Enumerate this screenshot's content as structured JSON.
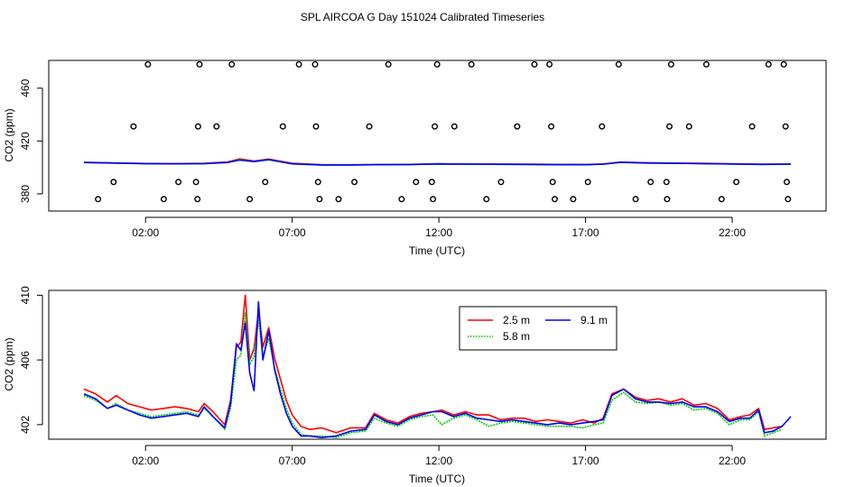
{
  "title": "SPL AIRCOA G  Day 151024  Calibrated Timeseries",
  "chart_data": [
    {
      "type": "scatter",
      "name": "all-samples",
      "xlabel": "Time (UTC)",
      "ylabel": "CO2 (ppm)",
      "xlim": [
        -1.3,
        25.2
      ],
      "ylim": [
        367,
        481
      ],
      "xticks": [
        {
          "v": 2,
          "label": "02:00"
        },
        {
          "v": 7,
          "label": "07:00"
        },
        {
          "v": 12,
          "label": "12:00"
        },
        {
          "v": 17,
          "label": "17:00"
        },
        {
          "v": 22,
          "label": "22:00"
        }
      ],
      "yticks": [
        {
          "v": 380,
          "label": "380"
        },
        {
          "v": 420,
          "label": "420"
        },
        {
          "v": 460,
          "label": "460"
        }
      ],
      "calibration_points": [
        [
          0.38,
          376
        ],
        [
          0.91,
          389
        ],
        [
          1.59,
          431
        ],
        [
          2.08,
          478
        ],
        [
          2.62,
          376
        ],
        [
          3.12,
          389
        ],
        [
          3.72,
          389
        ],
        [
          3.77,
          376
        ],
        [
          3.79,
          431
        ],
        [
          3.84,
          478
        ],
        [
          4.42,
          431
        ],
        [
          4.94,
          478
        ],
        [
          5.55,
          376
        ],
        [
          6.08,
          389
        ],
        [
          6.68,
          431
        ],
        [
          7.23,
          478
        ],
        [
          7.78,
          478
        ],
        [
          7.81,
          431
        ],
        [
          7.88,
          389
        ],
        [
          7.93,
          376
        ],
        [
          8.58,
          376
        ],
        [
          9.12,
          389
        ],
        [
          9.63,
          431
        ],
        [
          10.28,
          478
        ],
        [
          10.73,
          376
        ],
        [
          11.22,
          389
        ],
        [
          11.76,
          389
        ],
        [
          11.8,
          376
        ],
        [
          11.86,
          431
        ],
        [
          11.94,
          478
        ],
        [
          12.53,
          431
        ],
        [
          13.11,
          478
        ],
        [
          13.62,
          376
        ],
        [
          14.12,
          389
        ],
        [
          14.67,
          431
        ],
        [
          15.26,
          478
        ],
        [
          15.77,
          478
        ],
        [
          15.83,
          431
        ],
        [
          15.88,
          389
        ],
        [
          15.95,
          376
        ],
        [
          16.58,
          376
        ],
        [
          17.08,
          389
        ],
        [
          17.56,
          431
        ],
        [
          18.13,
          478
        ],
        [
          18.71,
          376
        ],
        [
          19.22,
          389
        ],
        [
          19.76,
          389
        ],
        [
          19.78,
          376
        ],
        [
          19.86,
          431
        ],
        [
          19.92,
          478
        ],
        [
          20.53,
          431
        ],
        [
          21.12,
          478
        ],
        [
          21.64,
          376
        ],
        [
          22.14,
          389
        ],
        [
          22.68,
          431
        ],
        [
          23.24,
          478
        ],
        [
          23.76,
          478
        ],
        [
          23.82,
          431
        ],
        [
          23.86,
          389
        ],
        [
          23.9,
          376
        ]
      ],
      "series": [
        {
          "name": "2.5 m",
          "color": "#ff0000",
          "x": [
            -0.1,
            1,
            2,
            3,
            4,
            4.8,
            5.2,
            5.7,
            6.2,
            7,
            8,
            9,
            10,
            11,
            12,
            13,
            14,
            15,
            16,
            17,
            17.6,
            18.2,
            19,
            20,
            21,
            22,
            23,
            24
          ],
          "values": [
            403.9,
            403.4,
            403.0,
            402.9,
            403.1,
            404.2,
            406.5,
            404.8,
            406.3,
            403.2,
            402.1,
            402.0,
            402.2,
            402.3,
            402.8,
            402.6,
            402.5,
            402.4,
            402.3,
            402.2,
            402.6,
            404.1,
            403.6,
            403.3,
            403.1,
            402.7,
            402.5,
            402.6
          ]
        },
        {
          "name": "5.8 m",
          "color": "#00cc00",
          "x": [
            -0.1,
            1,
            2,
            3,
            4,
            4.8,
            5.2,
            5.7,
            6.2,
            7,
            8,
            9,
            10,
            11,
            12,
            13,
            14,
            15,
            16,
            17,
            17.6,
            18.2,
            19,
            20,
            21,
            22,
            23,
            24
          ],
          "values": [
            403.7,
            403.2,
            402.8,
            402.7,
            402.9,
            403.8,
            406.0,
            404.5,
            405.8,
            402.8,
            401.9,
            401.9,
            402.1,
            402.2,
            402.6,
            402.4,
            402.3,
            402.2,
            402.1,
            402.0,
            402.4,
            403.8,
            403.3,
            403.1,
            402.9,
            402.5,
            402.3,
            402.4
          ]
        },
        {
          "name": "9.1 m",
          "color": "#0000ff",
          "x": [
            -0.1,
            1,
            2,
            3,
            4,
            4.8,
            5.2,
            5.7,
            6.2,
            7,
            8,
            9,
            10,
            11,
            12,
            13,
            14,
            15,
            16,
            17,
            17.6,
            18.2,
            19,
            20,
            21,
            22,
            23,
            24
          ],
          "values": [
            403.7,
            403.3,
            402.9,
            402.7,
            402.9,
            403.7,
            405.6,
            404.4,
            405.9,
            402.7,
            401.9,
            401.9,
            402.1,
            402.2,
            402.6,
            402.5,
            402.4,
            402.3,
            402.1,
            402.1,
            402.5,
            403.9,
            403.4,
            403.1,
            402.9,
            402.6,
            402.3,
            402.5
          ]
        }
      ]
    },
    {
      "type": "line",
      "name": "tower-levels",
      "xlabel": "Time (UTC)",
      "ylabel": "CO2 (ppm)",
      "xlim": [
        -1.3,
        25.2
      ],
      "ylim": [
        401.1,
        410.3
      ],
      "xticks": [
        {
          "v": 2,
          "label": "02:00"
        },
        {
          "v": 7,
          "label": "07:00"
        },
        {
          "v": 12,
          "label": "12:00"
        },
        {
          "v": 17,
          "label": "17:00"
        },
        {
          "v": 22,
          "label": "22:00"
        }
      ],
      "yticks": [
        {
          "v": 402,
          "label": "402"
        },
        {
          "v": 406,
          "label": "406"
        },
        {
          "v": 410,
          "label": "410"
        }
      ],
      "legend": {
        "position": "top-center",
        "entries": [
          "2.5 m",
          "5.8 m",
          "9.1 m"
        ]
      },
      "series": [
        {
          "name": "2.5 m",
          "color": "#ff0000",
          "linestyle": "solid",
          "x": [
            -0.1,
            0.3,
            0.7,
            1.0,
            1.4,
            1.8,
            2.2,
            2.6,
            3.0,
            3.4,
            3.8,
            4.0,
            4.3,
            4.7,
            4.9,
            5.1,
            5.25,
            5.4,
            5.55,
            5.7,
            5.85,
            6.0,
            6.2,
            6.4,
            6.6,
            6.8,
            7.0,
            7.3,
            7.6,
            8.0,
            8.5,
            9.0,
            9.5,
            9.8,
            10.2,
            10.6,
            11.0,
            11.4,
            11.8,
            12.1,
            12.5,
            12.9,
            13.3,
            13.7,
            14.1,
            14.5,
            14.9,
            15.3,
            15.7,
            16.1,
            16.5,
            16.9,
            17.3,
            17.6,
            17.9,
            18.3,
            18.7,
            19.1,
            19.5,
            19.9,
            20.3,
            20.7,
            21.1,
            21.5,
            21.9,
            22.3,
            22.6,
            22.9,
            23.1,
            23.4,
            23.7
          ],
          "values": [
            404.2,
            403.9,
            403.4,
            403.8,
            403.3,
            403.1,
            402.9,
            403.0,
            403.1,
            403.0,
            402.8,
            403.3,
            402.8,
            402.0,
            403.5,
            406.8,
            407.1,
            410.0,
            406.0,
            406.7,
            409.0,
            406.8,
            408.0,
            406.1,
            404.8,
            403.5,
            402.6,
            401.9,
            401.7,
            401.8,
            401.5,
            401.8,
            401.8,
            402.7,
            402.3,
            402.1,
            402.5,
            402.7,
            402.8,
            402.9,
            402.6,
            402.8,
            402.6,
            402.6,
            402.3,
            402.4,
            402.4,
            402.2,
            402.3,
            402.2,
            402.1,
            402.3,
            402.1,
            402.4,
            403.9,
            404.2,
            403.7,
            403.5,
            403.6,
            403.4,
            403.6,
            403.2,
            403.3,
            403.0,
            402.3,
            402.5,
            402.6,
            403.0,
            401.7,
            401.8,
            401.9
          ]
        },
        {
          "name": "5.8 m",
          "color": "#00cc00",
          "linestyle": "dotted",
          "x": [
            -0.1,
            0.3,
            0.7,
            1.0,
            1.4,
            1.8,
            2.2,
            2.6,
            3.0,
            3.4,
            3.8,
            4.0,
            4.3,
            4.7,
            4.9,
            5.1,
            5.25,
            5.4,
            5.55,
            5.7,
            5.85,
            6.0,
            6.2,
            6.4,
            6.6,
            6.8,
            7.0,
            7.3,
            7.6,
            8.0,
            8.5,
            9.0,
            9.5,
            9.8,
            10.2,
            10.6,
            11.0,
            11.4,
            11.8,
            12.1,
            12.5,
            12.9,
            13.3,
            13.7,
            14.1,
            14.5,
            14.9,
            15.3,
            15.7,
            16.1,
            16.5,
            16.9,
            17.3,
            17.6,
            17.9,
            18.3,
            18.7,
            19.1,
            19.5,
            19.9,
            20.3,
            20.7,
            21.1,
            21.5,
            21.9,
            22.3,
            22.6,
            22.9,
            23.1,
            23.4,
            23.7
          ],
          "values": [
            403.8,
            403.5,
            403.0,
            403.3,
            402.9,
            402.7,
            402.5,
            402.6,
            402.7,
            402.8,
            402.6,
            403.0,
            402.5,
            401.7,
            403.0,
            406.0,
            406.3,
            408.9,
            405.7,
            406.2,
            408.5,
            406.2,
            407.3,
            405.5,
            404.2,
            403.0,
            402.1,
            401.4,
            401.3,
            401.3,
            401.2,
            401.5,
            401.6,
            402.4,
            402.1,
            401.9,
            402.3,
            402.5,
            402.6,
            402.0,
            402.4,
            402.6,
            402.3,
            401.9,
            402.1,
            402.2,
            402.1,
            402.0,
            401.9,
            401.9,
            401.9,
            401.8,
            402.0,
            402.1,
            403.5,
            404.0,
            403.4,
            403.3,
            403.4,
            403.2,
            403.3,
            402.9,
            403.0,
            402.7,
            402.0,
            402.3,
            402.3,
            402.8,
            401.3,
            401.5,
            401.7
          ]
        },
        {
          "name": "9.1 m",
          "color": "#0000ff",
          "linestyle": "solid",
          "x": [
            -0.1,
            0.3,
            0.7,
            1.0,
            1.4,
            1.8,
            2.2,
            2.6,
            3.0,
            3.4,
            3.8,
            4.0,
            4.3,
            4.7,
            4.9,
            5.1,
            5.25,
            5.4,
            5.55,
            5.7,
            5.85,
            6.0,
            6.2,
            6.4,
            6.6,
            6.8,
            7.0,
            7.3,
            7.6,
            8.0,
            8.5,
            9.0,
            9.5,
            9.8,
            10.2,
            10.6,
            11.0,
            11.4,
            11.8,
            12.1,
            12.5,
            12.9,
            13.3,
            13.7,
            14.1,
            14.5,
            14.9,
            15.3,
            15.7,
            16.1,
            16.5,
            16.9,
            17.3,
            17.6,
            17.9,
            18.3,
            18.7,
            19.1,
            19.5,
            19.9,
            20.3,
            20.7,
            21.1,
            21.5,
            21.9,
            22.3,
            22.6,
            22.9,
            23.1,
            23.4,
            23.7,
            24.0
          ],
          "values": [
            403.9,
            403.6,
            403.0,
            403.2,
            402.9,
            402.6,
            402.4,
            402.5,
            402.6,
            402.7,
            402.5,
            403.1,
            402.5,
            401.8,
            403.3,
            407.0,
            406.6,
            408.3,
            405.2,
            404.1,
            409.6,
            406.0,
            407.8,
            405.4,
            403.9,
            402.7,
            401.9,
            401.3,
            401.3,
            401.2,
            401.3,
            401.6,
            401.7,
            402.6,
            402.2,
            402.0,
            402.4,
            402.6,
            402.8,
            402.8,
            402.5,
            402.7,
            402.4,
            402.3,
            402.2,
            402.3,
            402.2,
            402.1,
            402.0,
            402.1,
            402.0,
            402.1,
            402.2,
            402.3,
            403.8,
            404.2,
            403.6,
            403.4,
            403.4,
            403.3,
            403.4,
            403.1,
            403.1,
            402.8,
            402.2,
            402.4,
            402.4,
            402.9,
            401.5,
            401.6,
            401.9,
            402.5
          ]
        }
      ]
    }
  ]
}
